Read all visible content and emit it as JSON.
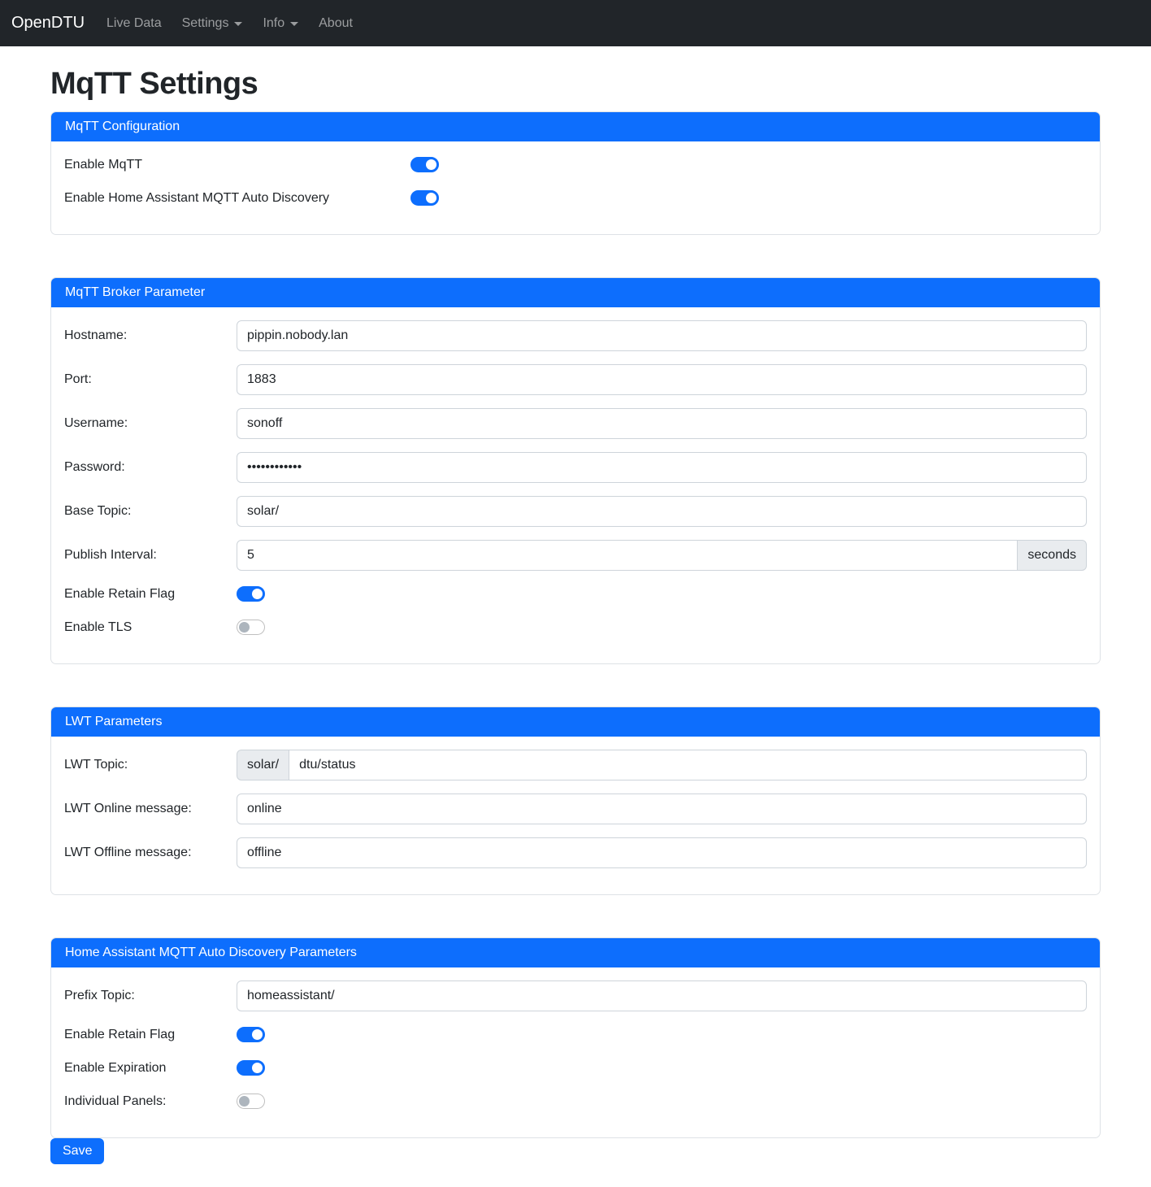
{
  "colors": {
    "primary": "#0d6efd",
    "navbar_bg": "#212529",
    "card_border": "#dee2e6",
    "addon_bg": "#e9ecef"
  },
  "navbar": {
    "brand": "OpenDTU",
    "items": [
      {
        "label": "Live Data",
        "dropdown": false
      },
      {
        "label": "Settings",
        "dropdown": true
      },
      {
        "label": "Info",
        "dropdown": true
      },
      {
        "label": "About",
        "dropdown": false
      }
    ]
  },
  "page": {
    "title": "MqTT Settings"
  },
  "config_card": {
    "title": "MqTT Configuration",
    "switches": [
      {
        "label": "Enable MqTT",
        "on": true
      },
      {
        "label": "Enable Home Assistant MQTT Auto Discovery",
        "on": true
      }
    ]
  },
  "broker_card": {
    "title": "MqTT Broker Parameter",
    "fields": {
      "hostname": {
        "label": "Hostname:",
        "value": "pippin.nobody.lan"
      },
      "port": {
        "label": "Port:",
        "value": "1883"
      },
      "username": {
        "label": "Username:",
        "value": "sonoff"
      },
      "password": {
        "label": "Password:",
        "value": "••••••••••••"
      },
      "base_topic": {
        "label": "Base Topic:",
        "value": "solar/"
      },
      "publish_interval": {
        "label": "Publish Interval:",
        "value": "5",
        "suffix": "seconds"
      }
    },
    "switches": [
      {
        "label": "Enable Retain Flag",
        "on": true
      },
      {
        "label": "Enable TLS",
        "on": false
      }
    ]
  },
  "lwt_card": {
    "title": "LWT Parameters",
    "fields": {
      "topic": {
        "label": "LWT Topic:",
        "prefix": "solar/",
        "value": "dtu/status"
      },
      "online": {
        "label": "LWT Online message:",
        "value": "online"
      },
      "offline": {
        "label": "LWT Offline message:",
        "value": "offline"
      }
    }
  },
  "hass_card": {
    "title": "Home Assistant MQTT Auto Discovery Parameters",
    "fields": {
      "prefix_topic": {
        "label": "Prefix Topic:",
        "value": "homeassistant/"
      }
    },
    "switches": [
      {
        "label": "Enable Retain Flag",
        "on": true
      },
      {
        "label": "Enable Expiration",
        "on": true
      },
      {
        "label": "Individual Panels:",
        "on": false
      }
    ]
  },
  "save_button": "Save"
}
